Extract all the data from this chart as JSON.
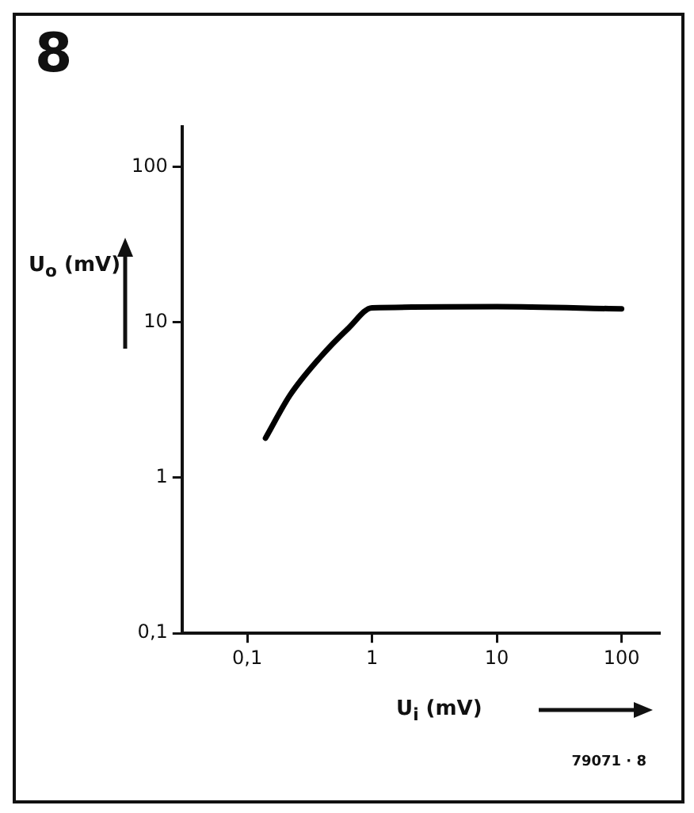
{
  "chart_data": {
    "type": "line",
    "title": "8",
    "xlabel": "U$_{i}$ (mV)",
    "ylabel": "U$_{o}$ (mV)",
    "log": "xy",
    "grid": false,
    "legend": false,
    "annotations": [
      "79071 · 8"
    ],
    "series": [
      {
        "color": "#000000",
        "x": [
          0.14,
          0.22,
          0.38,
          0.65,
          1,
          10,
          100
        ],
        "values": [
          1.8,
          3.4,
          5.9,
          9.2,
          12.4,
          12.6,
          12.2
        ]
      }
    ],
    "xlim": [
      0.03,
      200
    ],
    "xticks": [
      {
        "value": 0.1,
        "label": "0,1"
      },
      1,
      10,
      100
    ],
    "ylim": [
      0.1,
      180
    ],
    "yticks": [
      {
        "value": 0.1,
        "label": "0,1"
      },
      1,
      10,
      100
    ]
  }
}
